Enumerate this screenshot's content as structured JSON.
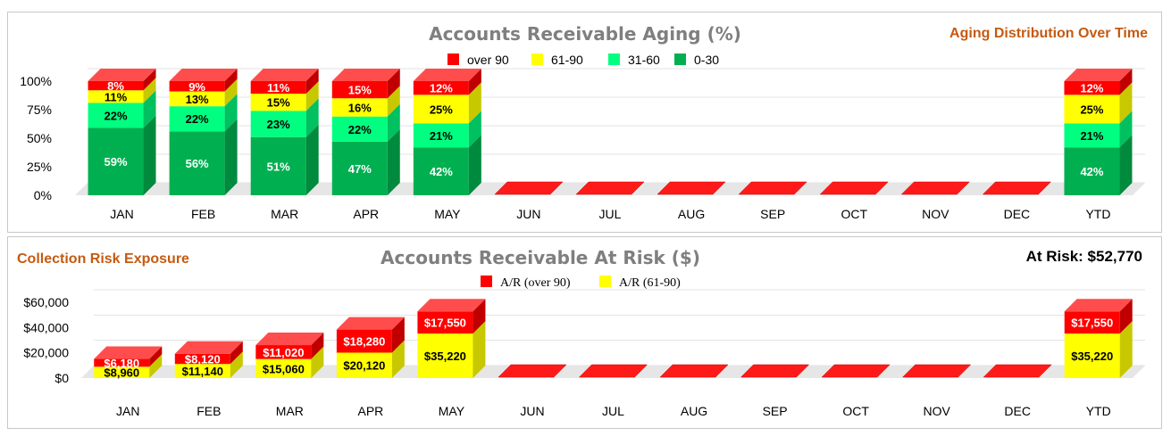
{
  "chart_data": [
    {
      "type": "bar",
      "stacked": true,
      "title": "Accounts Receivable Aging (%)",
      "side_title": "Aging Distribution Over Time",
      "categories": [
        "JAN",
        "FEB",
        "MAR",
        "APR",
        "MAY",
        "JUN",
        "JUL",
        "AUG",
        "SEP",
        "OCT",
        "NOV",
        "DEC",
        "YTD"
      ],
      "y_ticks": [
        "100%",
        "75%",
        "50%",
        "25%",
        "0%"
      ],
      "ylim": [
        0,
        100
      ],
      "legend": [
        "over 90",
        "61-90",
        "31-60",
        "0-30"
      ],
      "legend_position": "top-center",
      "series": [
        {
          "name": "0-30",
          "color": "#00b050",
          "side": "#008a3e",
          "top": "#33c772",
          "values": [
            59,
            56,
            51,
            47,
            42,
            null,
            null,
            null,
            null,
            null,
            null,
            null,
            42
          ],
          "labels": [
            "59%",
            "56%",
            "51%",
            "47%",
            "42%",
            "",
            "",
            "",
            "",
            "",
            "",
            "",
            "42%"
          ],
          "label_color": "#ffffff"
        },
        {
          "name": "31-60",
          "color": "#00ff80",
          "side": "#00c060",
          "top": "#4dff9e",
          "values": [
            22,
            22,
            23,
            22,
            21,
            null,
            null,
            null,
            null,
            null,
            null,
            null,
            21
          ],
          "labels": [
            "22%",
            "22%",
            "23%",
            "22%",
            "21%",
            "",
            "",
            "",
            "",
            "",
            "",
            "",
            "21%"
          ],
          "label_color": "#000000"
        },
        {
          "name": "61-90",
          "color": "#ffff00",
          "side": "#c8c800",
          "top": "#ffff66",
          "values": [
            11,
            13,
            15,
            16,
            25,
            null,
            null,
            null,
            null,
            null,
            null,
            null,
            25
          ],
          "labels": [
            "11%",
            "13%",
            "15%",
            "16%",
            "25%",
            "",
            "",
            "",
            "",
            "",
            "",
            "",
            "25%"
          ],
          "label_color": "#000000"
        },
        {
          "name": "over 90",
          "color": "#ff0000",
          "side": "#c00000",
          "top": "#ff4d4d",
          "values": [
            8,
            9,
            11,
            15,
            12,
            null,
            null,
            null,
            null,
            null,
            null,
            null,
            12
          ],
          "labels": [
            "8%",
            "9%",
            "11%",
            "15%",
            "12%",
            "",
            "",
            "",
            "",
            "",
            "",
            "",
            "12%"
          ],
          "label_color": "#ffffff"
        }
      ],
      "grid": true
    },
    {
      "type": "bar",
      "stacked": true,
      "title": "Accounts Receivable At Risk ($)",
      "side_title": "Collection Risk Exposure",
      "total_label": "At Risk: $52,770",
      "categories": [
        "JAN",
        "FEB",
        "MAR",
        "APR",
        "MAY",
        "JUN",
        "JUL",
        "AUG",
        "SEP",
        "OCT",
        "NOV",
        "DEC",
        "YTD"
      ],
      "y_ticks": [
        "$60,000",
        "$40,000",
        "$20,000",
        "$0"
      ],
      "ylim": [
        0,
        60000
      ],
      "legend": [
        "A/R (over 90)",
        "A/R (61-90)"
      ],
      "legend_position": "top-center",
      "series": [
        {
          "name": "A/R (61-90)",
          "color": "#ffff00",
          "side": "#c8c800",
          "top": "#ffff66",
          "values": [
            8960,
            11140,
            15060,
            20120,
            35220,
            null,
            null,
            null,
            null,
            null,
            null,
            null,
            35220
          ],
          "labels": [
            "$8,960",
            "$11,140",
            "$15,060",
            "$20,120",
            "$35,220",
            "",
            "",
            "",
            "",
            "",
            "",
            "",
            "$35,220"
          ],
          "label_color": "#000000"
        },
        {
          "name": "A/R (over 90)",
          "color": "#ff0000",
          "side": "#c00000",
          "top": "#ff4d4d",
          "values": [
            6180,
            8120,
            11020,
            18280,
            17550,
            null,
            null,
            null,
            null,
            null,
            null,
            null,
            17550
          ],
          "labels": [
            "$6,180",
            "$8,120",
            "$11,020",
            "$18,280",
            "$17,550",
            "",
            "",
            "",
            "",
            "",
            "",
            "",
            "$17,550"
          ],
          "label_color": "#ffffff"
        }
      ],
      "grid": true
    }
  ]
}
